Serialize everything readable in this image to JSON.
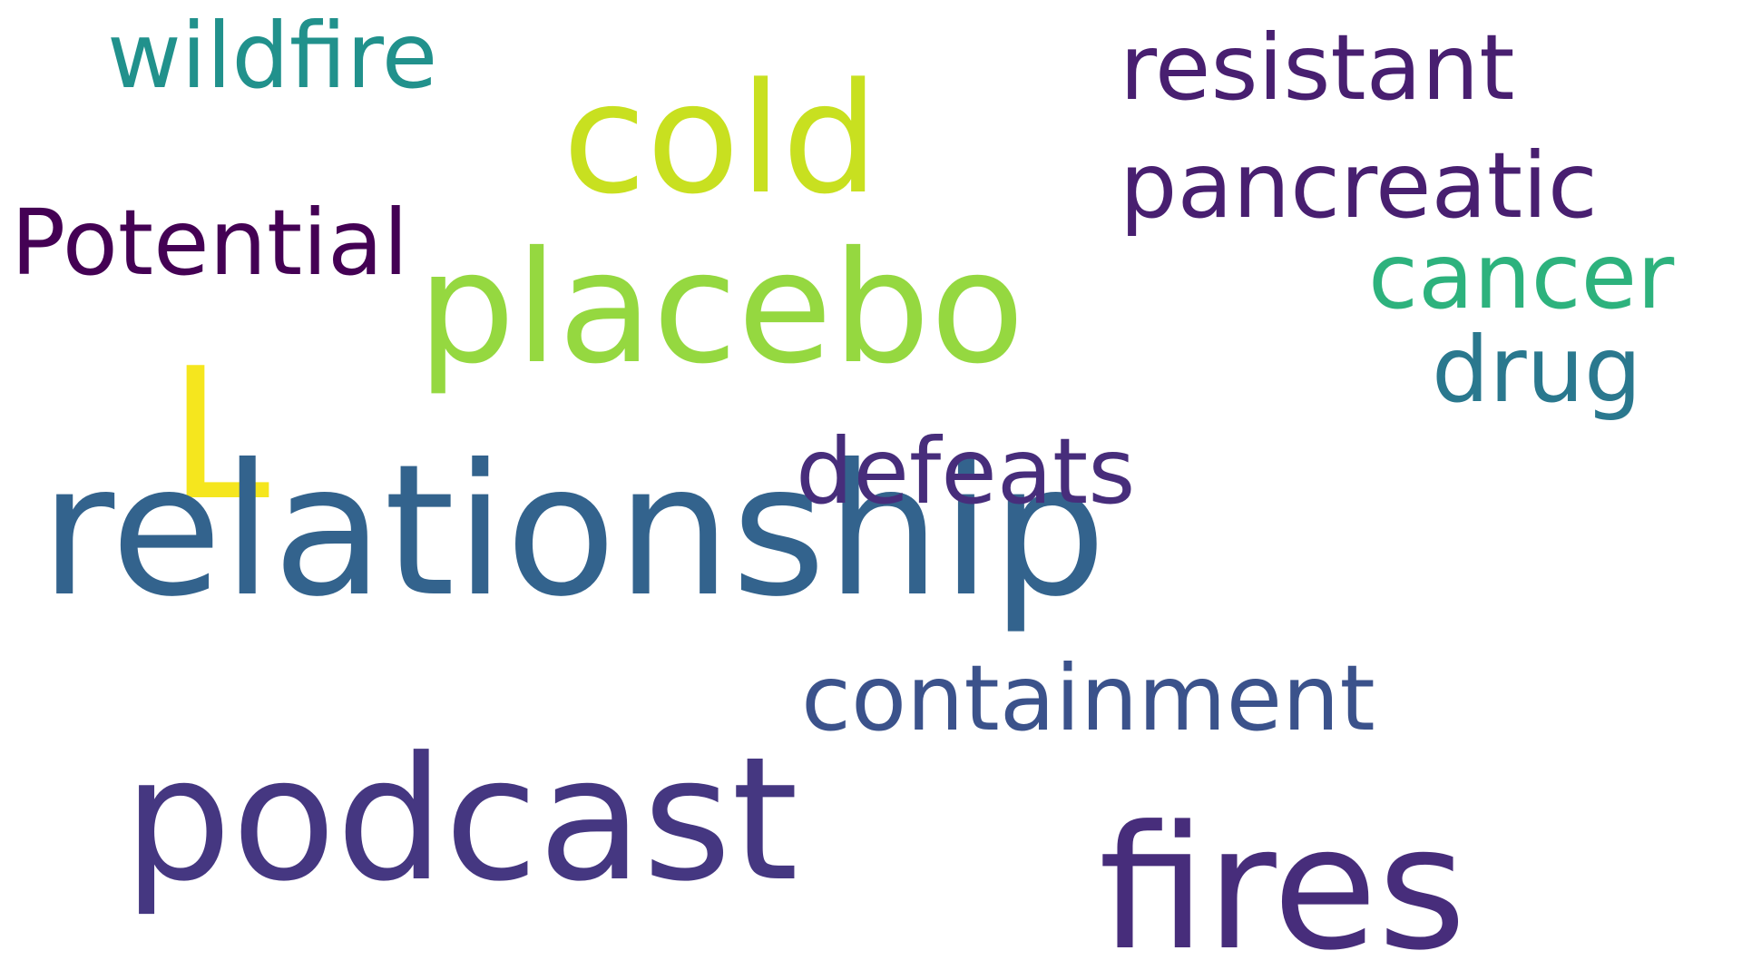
{
  "background_color": "#ffffff",
  "words": [
    {
      "id": "relationship",
      "text": "relationship",
      "color": "#33638d"
    },
    {
      "id": "podcast",
      "text": "podcast",
      "color": "#453781"
    },
    {
      "id": "fires",
      "text": "fires",
      "color": "#472d7b"
    },
    {
      "id": "placebo",
      "text": "placebo",
      "color": "#95d840"
    },
    {
      "id": "cold",
      "text": "cold",
      "color": "#c8e020"
    },
    {
      "id": "wildfire",
      "text": "wildfire",
      "color": "#21918c"
    },
    {
      "id": "resistant",
      "text": "resistant",
      "color": "#481f70"
    },
    {
      "id": "pancreatic",
      "text": "pancreatic",
      "color": "#481f70"
    },
    {
      "id": "potential",
      "text": "Potential",
      "color": "#440154"
    },
    {
      "id": "cancer",
      "text": "cancer",
      "color": "#2db27d"
    },
    {
      "id": "drug",
      "text": "drug",
      "color": "#2a788e"
    },
    {
      "id": "defeats",
      "text": "defeats",
      "color": "#472d7b"
    },
    {
      "id": "containment",
      "text": "containment",
      "color": "#3b528b"
    },
    {
      "id": "l",
      "text": "L",
      "color": "#f5e61e"
    }
  ]
}
